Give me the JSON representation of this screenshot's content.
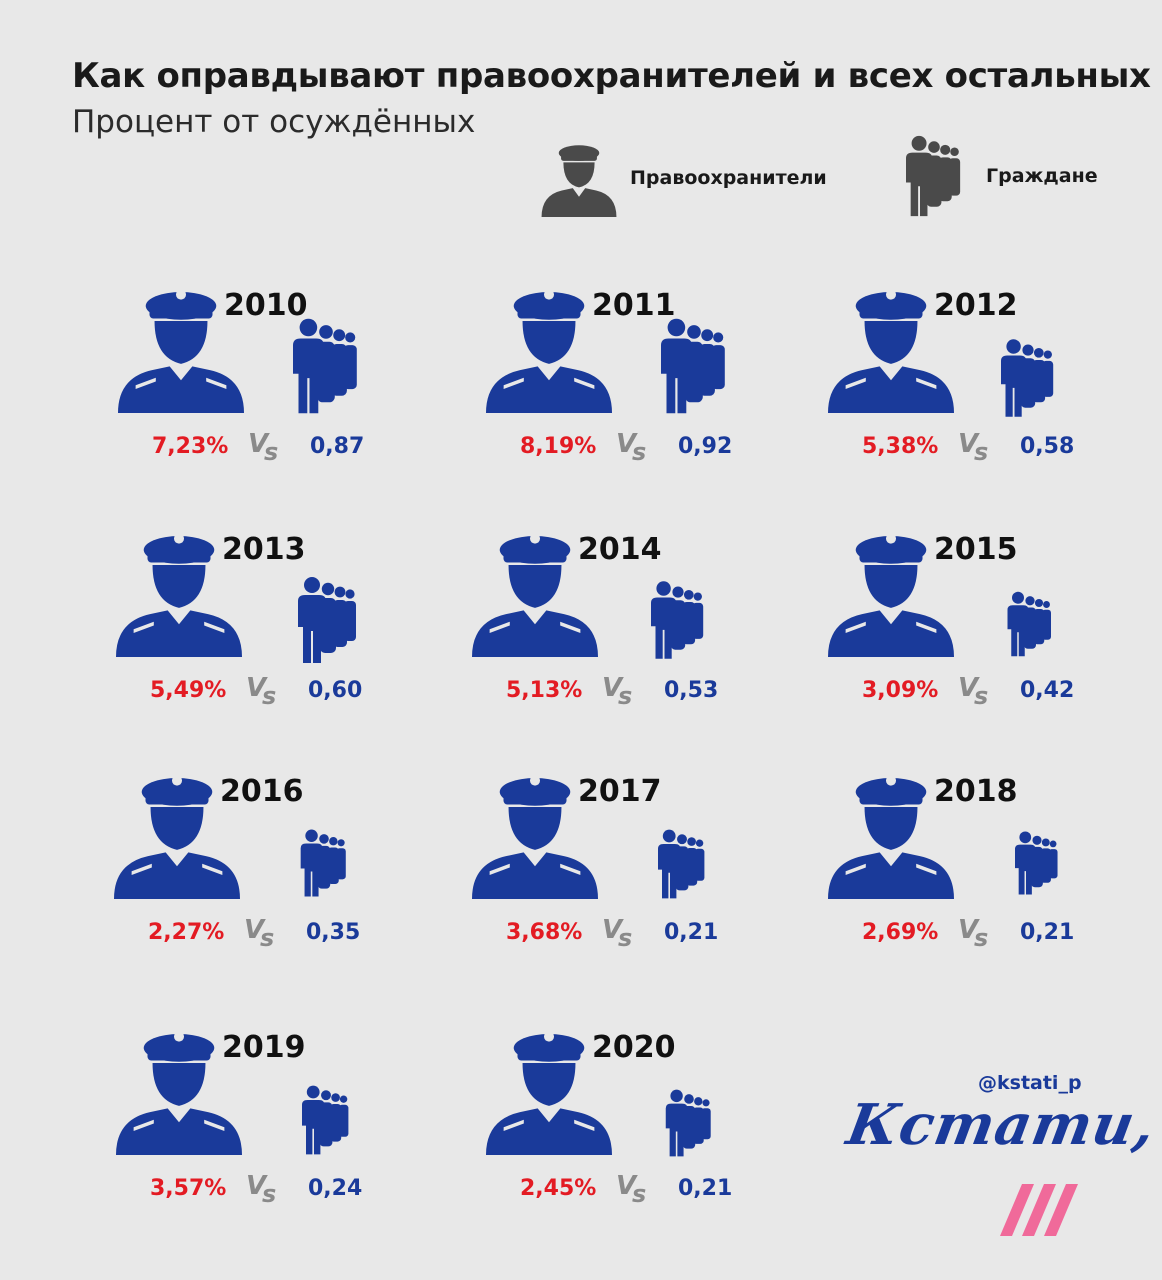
{
  "header": {
    "title": "Как оправдывают правоохранителей и всех остальных",
    "subtitle": "Процент от осуждённых"
  },
  "legend": {
    "officers_label": "Правоохранители",
    "citizens_label": "Граждане",
    "officers_icon": "officer-icon",
    "citizens_icon": "crowd-icon"
  },
  "vs_label": "Vs",
  "chart_data": {
    "type": "table",
    "title": "Как оправдывают правоохранителей и всех остальных",
    "subtitle": "Процент от осуждённых",
    "series": [
      {
        "name": "Правоохранители",
        "unit": "%",
        "color": "#e31b23",
        "values": [
          7.23,
          8.19,
          5.38,
          5.49,
          5.13,
          3.09,
          2.27,
          3.68,
          2.69,
          3.57,
          2.45
        ]
      },
      {
        "name": "Граждане",
        "unit": "",
        "color": "#1a3a9a",
        "values": [
          0.87,
          0.92,
          0.58,
          0.6,
          0.53,
          0.42,
          0.35,
          0.21,
          0.21,
          0.24,
          0.21
        ]
      }
    ],
    "items": [
      {
        "year": "2010",
        "officers": "7,23%",
        "citizens": "0,87"
      },
      {
        "year": "2011",
        "officers": "8,19%",
        "citizens": "0,92"
      },
      {
        "year": "2012",
        "officers": "5,38%",
        "citizens": "0,58"
      },
      {
        "year": "2013",
        "officers": "5,49%",
        "citizens": "0,60"
      },
      {
        "year": "2014",
        "officers": "5,13%",
        "citizens": "0,53"
      },
      {
        "year": "2015",
        "officers": "3,09%",
        "citizens": "0,42"
      },
      {
        "year": "2016",
        "officers": "2,27%",
        "citizens": "0,35"
      },
      {
        "year": "2017",
        "officers": "3,68%",
        "citizens": "0,21"
      },
      {
        "year": "2018",
        "officers": "2,69%",
        "citizens": "0,21"
      },
      {
        "year": "2019",
        "officers": "3,57%",
        "citizens": "0,24"
      },
      {
        "year": "2020",
        "officers": "2,45%",
        "citizens": "0,21"
      }
    ]
  },
  "footer": {
    "handle": "@kstati_p",
    "brand": "Кстати,"
  },
  "colors": {
    "background": "#e8e8e8",
    "officer_blue": "#1a3a9a",
    "legend_gray": "#4a4a4a",
    "officer_red": "#e31b23",
    "vs_gray": "#8a8a8a",
    "stripe_pink": "#f06a9a"
  }
}
